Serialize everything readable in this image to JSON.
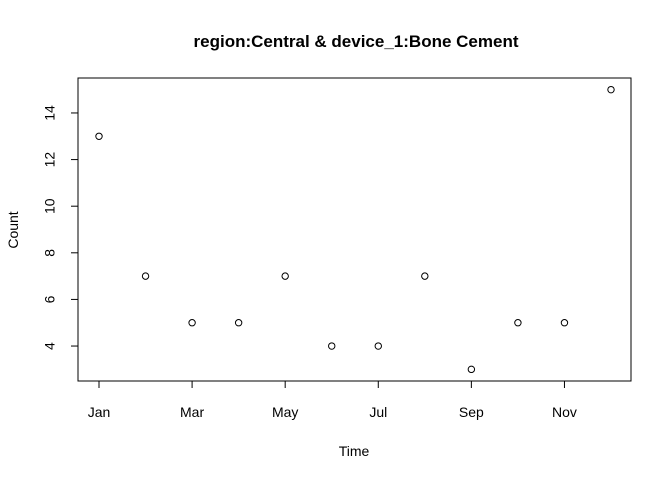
{
  "chart_data": {
    "type": "scatter",
    "title": "region:Central & device_1:Bone Cement",
    "xlabel": "Time",
    "ylabel": "Count",
    "x": [
      "Jan",
      "Feb",
      "Mar",
      "Apr",
      "May",
      "Jun",
      "Jul",
      "Aug",
      "Sep",
      "Oct",
      "Nov",
      "Dec"
    ],
    "y": [
      13,
      7,
      5,
      5,
      7,
      4,
      4,
      7,
      3,
      5,
      5,
      15
    ],
    "x_ticks": [
      "Jan",
      "Mar",
      "May",
      "Jul",
      "Sep",
      "Nov"
    ],
    "y_ticks": [
      4,
      6,
      8,
      10,
      12,
      14
    ],
    "ylim": [
      2.5,
      15.5
    ],
    "grid": false,
    "marker": "open-circle"
  }
}
